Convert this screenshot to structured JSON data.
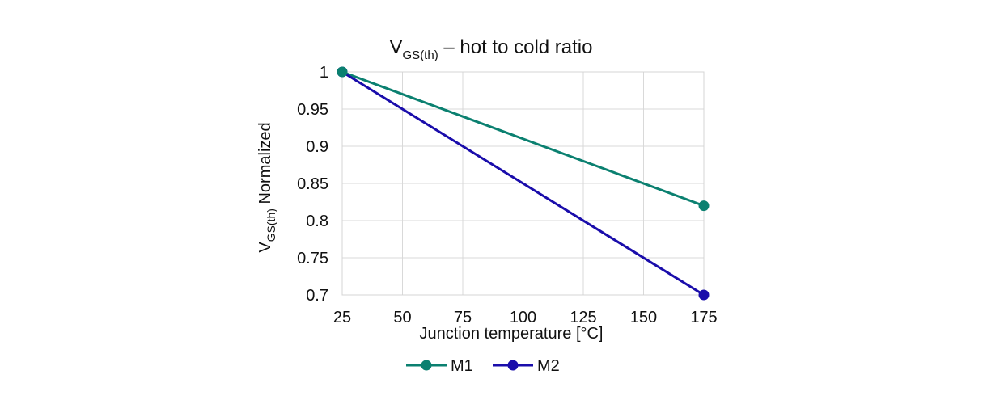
{
  "chart_data": {
    "type": "line",
    "title": {
      "main": "V",
      "sub": "GS(th)",
      "rest": " – hot to cold ratio"
    },
    "xlabel": "Junction temperature [°C]",
    "ylabel": {
      "main": "V",
      "sub": "GS(th)",
      "rest": " Normalized"
    },
    "xlim": [
      25,
      175
    ],
    "ylim": [
      0.7,
      1.0
    ],
    "xticks": [
      "25",
      "50",
      "75",
      "100",
      "125",
      "150",
      "175"
    ],
    "yticks": [
      "1",
      "0.95",
      "0.9",
      "0.85",
      "0.8",
      "0.75",
      "0.7"
    ],
    "grid": true,
    "legend_position": "bottom",
    "series": [
      {
        "name": "M1",
        "color": "#0b8070",
        "x": [
          25,
          175
        ],
        "y": [
          1.0,
          0.82
        ]
      },
      {
        "name": "M2",
        "color": "#1a0dab",
        "x": [
          25,
          175
        ],
        "y": [
          1.0,
          0.7
        ]
      }
    ]
  }
}
